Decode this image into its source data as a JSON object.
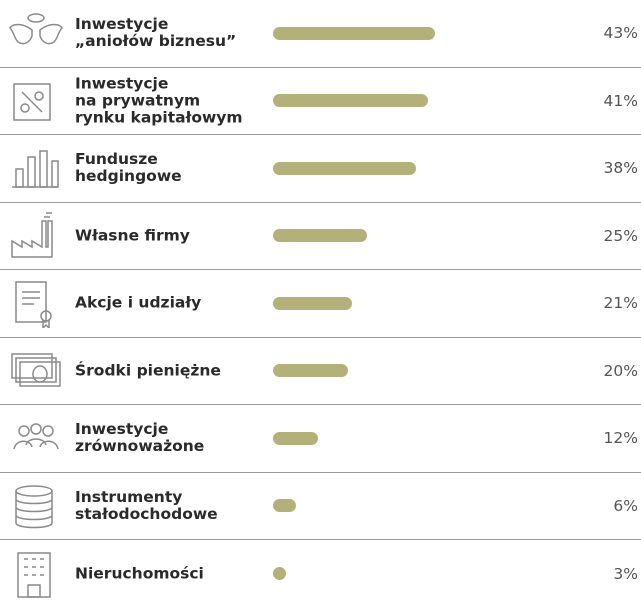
{
  "chart_data": {
    "type": "bar",
    "categories": [
      "Inwestycje\n„aniołów biznesu”",
      "Inwestycje\nna prywatnym\nrynku kapitałowym",
      "Fundusze\nhedgingowe",
      "Własne firmy",
      "Akcje i udziały",
      "Środki pieniężne",
      "Inwestycje\nzrównoważone",
      "Instrumenty\nstałodochodowe",
      "Nieruchomości"
    ],
    "values": [
      43,
      41,
      38,
      25,
      21,
      20,
      12,
      6,
      3
    ],
    "value_labels": [
      "43%",
      "41%",
      "38%",
      "25%",
      "21%",
      "20%",
      "12%",
      "6%",
      "3%"
    ],
    "color": "#b3b07a"
  }
}
